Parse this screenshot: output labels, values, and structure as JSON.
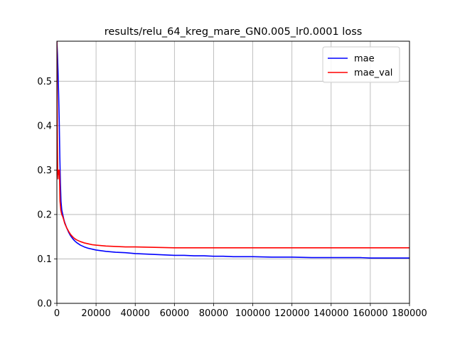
{
  "chart_data": {
    "type": "line",
    "title": "results/relu_64_kreg_mare_GN0.005_lr0.0001 loss",
    "xlabel": "",
    "ylabel": "",
    "xlim": [
      0,
      180000
    ],
    "ylim": [
      0.0,
      0.59
    ],
    "xticks": [
      0,
      20000,
      40000,
      60000,
      80000,
      100000,
      120000,
      140000,
      160000,
      180000
    ],
    "yticks": [
      0.0,
      0.1,
      0.2,
      0.3,
      0.4,
      0.5
    ],
    "grid": true,
    "legend_position": "top-right",
    "series": [
      {
        "name": "mae",
        "color": "#0000ff",
        "x": [
          0,
          300,
          600,
          900,
          1200,
          1500,
          1800,
          2100,
          2500,
          3000,
          3500,
          4000,
          5000,
          6000,
          7000,
          8000,
          9000,
          10000,
          12000,
          14000,
          16000,
          18000,
          20000,
          25000,
          30000,
          35000,
          40000,
          45000,
          50000,
          55000,
          60000,
          65000,
          70000,
          75000,
          80000,
          85000,
          90000,
          100000,
          110000,
          120000,
          130000,
          140000,
          150000,
          155000,
          160000,
          170000,
          180000
        ],
        "y": [
          0.59,
          0.56,
          0.52,
          0.47,
          0.41,
          0.33,
          0.27,
          0.23,
          0.21,
          0.2,
          0.19,
          0.182,
          0.17,
          0.16,
          0.152,
          0.146,
          0.141,
          0.137,
          0.131,
          0.127,
          0.124,
          0.122,
          0.12,
          0.117,
          0.115,
          0.114,
          0.112,
          0.111,
          0.11,
          0.109,
          0.108,
          0.108,
          0.107,
          0.107,
          0.106,
          0.106,
          0.105,
          0.105,
          0.104,
          0.104,
          0.103,
          0.103,
          0.103,
          0.103,
          0.102,
          0.102,
          0.102
        ]
      },
      {
        "name": "mae_val",
        "color": "#ff0000",
        "x": [
          0,
          200,
          400,
          600,
          800,
          1000,
          1300,
          1600,
          2000,
          2500,
          3000,
          3500,
          4000,
          5000,
          6000,
          7000,
          8000,
          9000,
          10000,
          12000,
          14000,
          16000,
          18000,
          20000,
          25000,
          30000,
          35000,
          40000,
          50000,
          60000,
          70000,
          80000,
          90000,
          100000,
          120000,
          140000,
          160000,
          180000
        ],
        "y": [
          0.59,
          0.4,
          0.3,
          0.28,
          0.3,
          0.29,
          0.3,
          0.23,
          0.21,
          0.2,
          0.195,
          0.188,
          0.18,
          0.17,
          0.162,
          0.155,
          0.15,
          0.146,
          0.143,
          0.139,
          0.136,
          0.134,
          0.132,
          0.131,
          0.129,
          0.128,
          0.127,
          0.127,
          0.126,
          0.125,
          0.125,
          0.125,
          0.125,
          0.125,
          0.125,
          0.125,
          0.125,
          0.125
        ]
      }
    ]
  }
}
